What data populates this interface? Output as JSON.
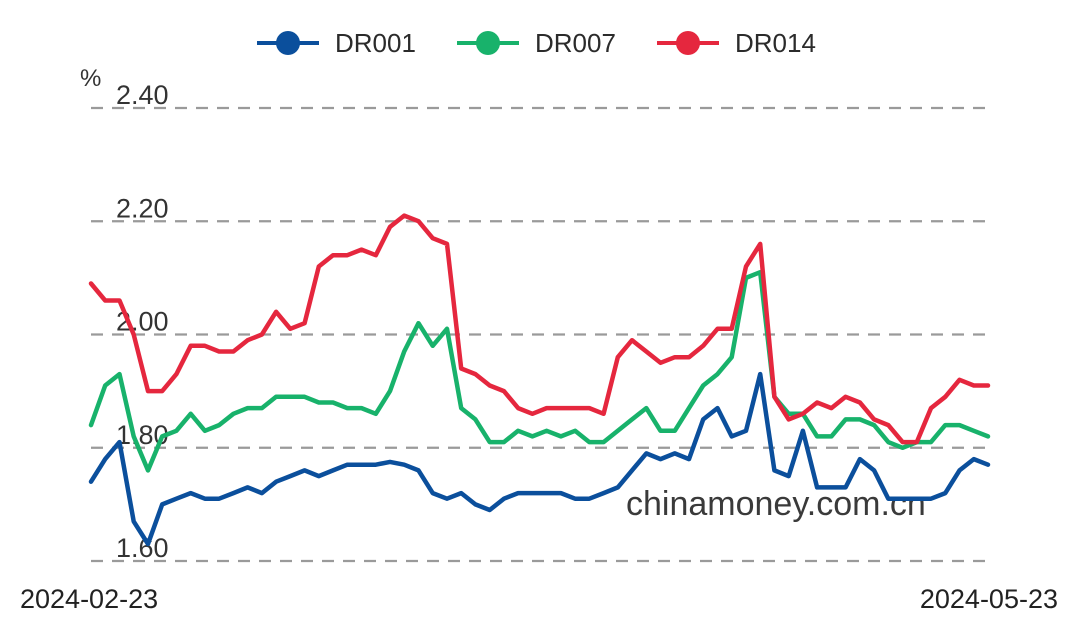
{
  "chart_data": {
    "type": "line",
    "unit": "%",
    "ylim": [
      1.6,
      2.4
    ],
    "yticks": [
      "1.60",
      "1.80",
      "2.00",
      "2.20",
      "2.40"
    ],
    "x_start": "2024-02-23",
    "x_end": "2024-05-23",
    "grid": true,
    "legend_position": "top-center",
    "watermark": "chinamoney.com.cn",
    "series": [
      {
        "name": "DR001",
        "color": "#0b4f9c",
        "values": [
          1.74,
          1.78,
          1.81,
          1.67,
          1.63,
          1.7,
          1.71,
          1.72,
          1.71,
          1.71,
          1.72,
          1.73,
          1.72,
          1.74,
          1.75,
          1.76,
          1.75,
          1.76,
          1.77,
          1.77,
          1.77,
          1.775,
          1.77,
          1.76,
          1.72,
          1.71,
          1.72,
          1.7,
          1.69,
          1.71,
          1.72,
          1.72,
          1.72,
          1.72,
          1.71,
          1.71,
          1.72,
          1.73,
          1.76,
          1.79,
          1.78,
          1.79,
          1.78,
          1.85,
          1.87,
          1.82,
          1.83,
          1.93,
          1.76,
          1.75,
          1.83,
          1.73,
          1.73,
          1.73,
          1.78,
          1.76,
          1.71,
          1.71,
          1.71,
          1.71,
          1.72,
          1.76,
          1.78,
          1.77
        ]
      },
      {
        "name": "DR007",
        "color": "#18b26b",
        "values": [
          1.84,
          1.91,
          1.93,
          1.82,
          1.76,
          1.82,
          1.83,
          1.86,
          1.83,
          1.84,
          1.86,
          1.87,
          1.87,
          1.89,
          1.89,
          1.89,
          1.88,
          1.88,
          1.87,
          1.87,
          1.86,
          1.9,
          1.97,
          2.02,
          1.98,
          2.01,
          1.87,
          1.85,
          1.81,
          1.81,
          1.83,
          1.82,
          1.83,
          1.82,
          1.83,
          1.81,
          1.81,
          1.83,
          1.85,
          1.87,
          1.83,
          1.83,
          1.87,
          1.91,
          1.93,
          1.96,
          2.1,
          2.11,
          1.89,
          1.86,
          1.86,
          1.82,
          1.82,
          1.85,
          1.85,
          1.84,
          1.81,
          1.8,
          1.81,
          1.81,
          1.84,
          1.84,
          1.83,
          1.82
        ]
      },
      {
        "name": "DR014",
        "color": "#e5273e",
        "values": [
          2.09,
          2.06,
          2.06,
          2.0,
          1.9,
          1.9,
          1.93,
          1.98,
          1.98,
          1.97,
          1.97,
          1.99,
          2.0,
          2.04,
          2.01,
          2.02,
          2.12,
          2.14,
          2.14,
          2.15,
          2.14,
          2.19,
          2.21,
          2.2,
          2.17,
          2.16,
          1.94,
          1.93,
          1.91,
          1.9,
          1.87,
          1.86,
          1.87,
          1.87,
          1.87,
          1.87,
          1.86,
          1.96,
          1.99,
          1.97,
          1.95,
          1.96,
          1.96,
          1.98,
          2.01,
          2.01,
          2.12,
          2.16,
          1.89,
          1.85,
          1.86,
          1.88,
          1.87,
          1.89,
          1.88,
          1.85,
          1.84,
          1.81,
          1.81,
          1.87,
          1.89,
          1.92,
          1.91,
          1.91
        ]
      }
    ]
  }
}
